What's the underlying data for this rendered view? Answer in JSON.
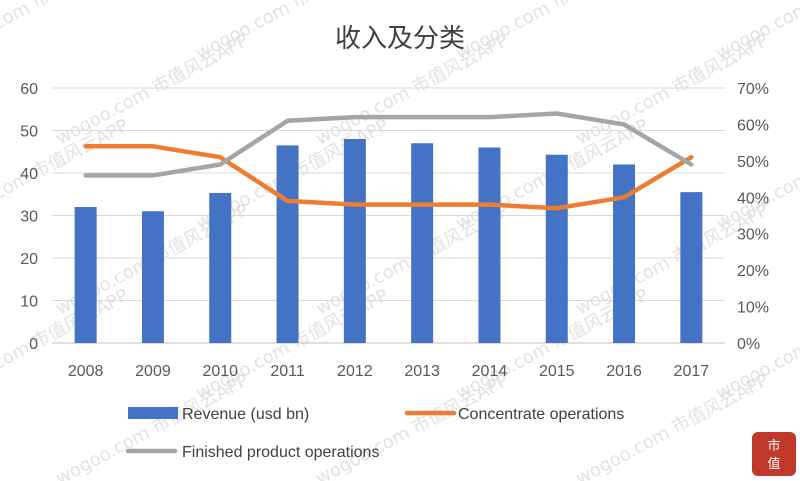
{
  "chart_data": {
    "type": "bar",
    "title": "收入及分类",
    "categories": [
      "2008",
      "2009",
      "2010",
      "2011",
      "2012",
      "2013",
      "2014",
      "2015",
      "2016",
      "2017"
    ],
    "series": [
      {
        "name": "Revenue (usd bn)",
        "type": "bar",
        "axis": "left",
        "color": "#4472C4",
        "values": [
          32,
          31,
          35.3,
          46.5,
          48,
          47,
          46,
          44.3,
          42,
          35.5
        ]
      },
      {
        "name": "Concentrate operations",
        "type": "line",
        "axis": "right",
        "color": "#ED7D31",
        "values": [
          54,
          54,
          51,
          39,
          38,
          38,
          38,
          37,
          40,
          51
        ]
      },
      {
        "name": "Finished product operations",
        "type": "line",
        "axis": "right",
        "color": "#A5A5A5",
        "values": [
          46,
          46,
          49,
          61,
          62,
          62,
          62,
          63,
          60,
          49
        ]
      }
    ],
    "ylim_left": [
      0,
      60
    ],
    "yticks_left": [
      "0",
      "10",
      "20",
      "30",
      "40",
      "50",
      "60"
    ],
    "ylim_right": [
      0,
      70
    ],
    "yticks_right": [
      "0%",
      "10%",
      "20%",
      "30%",
      "40%",
      "50%",
      "60%",
      "70%"
    ],
    "grid": true,
    "legend_position": "bottom"
  },
  "watermark": {
    "text": "市值风云APP",
    "domain": "wogoo.com",
    "seal": "市值风云"
  }
}
